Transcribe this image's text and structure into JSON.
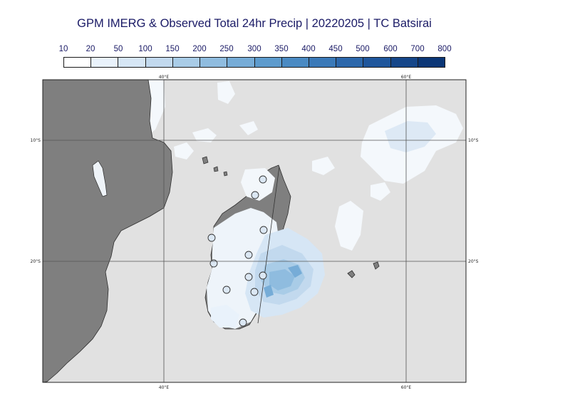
{
  "title": "GPM IMERG & Observed Total 24hr Precip | 20220205 | TC Batsirai",
  "legend": {
    "labels": [
      "10",
      "20",
      "50",
      "100",
      "150",
      "200",
      "250",
      "300",
      "350",
      "400",
      "450",
      "500",
      "600",
      "700",
      "800"
    ],
    "colors": [
      "#ffffff",
      "#e9f2fb",
      "#d6e6f5",
      "#c2d9ee",
      "#a9cce7",
      "#8fbcdf",
      "#76acd7",
      "#5d9bcd",
      "#4a8ac3",
      "#3a79b8",
      "#2c67ab",
      "#1f569c",
      "#154689",
      "#0b3676"
    ]
  },
  "map": {
    "lon_labels": [
      "40°E",
      "60°E"
    ],
    "lat_labels": [
      "10°S",
      "20°S"
    ],
    "colors": {
      "ocean": "#e1e1e1",
      "land": "#7f7f7f",
      "coast": "#2e2e2e",
      "grid": "#555555",
      "station_fill": "#dbe7f3"
    }
  }
}
